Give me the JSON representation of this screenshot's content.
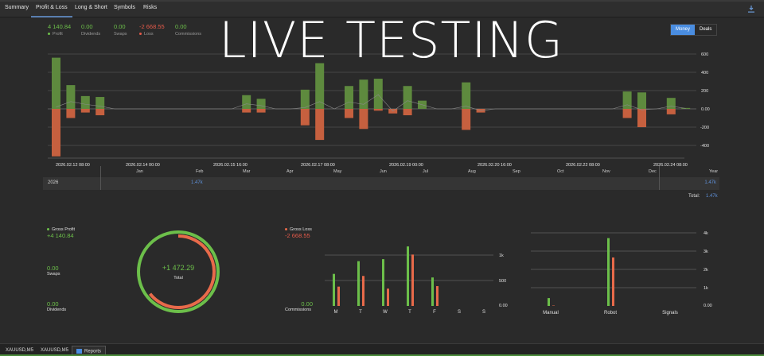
{
  "tabs": [
    {
      "label": "Summary"
    },
    {
      "label": "Profit & Loss",
      "active": true
    },
    {
      "label": "Long & Short"
    },
    {
      "label": "Symbols"
    },
    {
      "label": "Risks"
    }
  ],
  "header": {
    "overlay_title": "LIVE TESTING",
    "stats": [
      {
        "value": "4 140.84",
        "label": "Profit",
        "color": "#6cbf4a",
        "dot": "#6cbf4a"
      },
      {
        "value": "0.00",
        "label": "Dividends",
        "color": "#6cbf4a"
      },
      {
        "value": "0.00",
        "label": "Swaps",
        "color": "#6cbf4a"
      },
      {
        "value": "-2 668.55",
        "label": "Loss",
        "color": "#e55a4a",
        "dot": "#e55a4a"
      },
      {
        "value": "0.00",
        "label": "Commissions",
        "color": "#6cbf4a"
      }
    ],
    "toggle": {
      "money": "Money",
      "deals": "Deals",
      "selected": "Money"
    }
  },
  "months": [
    "Jan",
    "Feb",
    "Mar",
    "Apr",
    "May",
    "Jun",
    "Jul",
    "Aug",
    "Sep",
    "Oct",
    "Nov",
    "Dec"
  ],
  "year_table": {
    "year": "2026",
    "feb_value": "1.47k",
    "year_header": "Year",
    "year_value": "1.47k",
    "total_label": "Total:",
    "total_value": "1.47k"
  },
  "summary": {
    "gross_profit_label": "Gross Profit",
    "gross_profit_value": "+4 140.84",
    "swaps_value": "0.00",
    "swaps_label": "Swaps",
    "dividends_value": "0.00",
    "dividends_label": "Dividends",
    "total_value": "+1 472.29",
    "total_label": "Total",
    "gross_loss_label": "Gross Loss",
    "gross_loss_value": "-2 668.55",
    "commissions_value": "0.00",
    "commissions_label": "Commissions"
  },
  "bottom_tabs": [
    {
      "label": "XAUUSD,M5"
    },
    {
      "label": "XAUUSD,M5"
    },
    {
      "label": "Reports",
      "active": true
    }
  ],
  "colors": {
    "profit": "#5e8a3e",
    "loss": "#c6603f",
    "accent": "#4a8de0",
    "bright_green": "#6cbf4a",
    "bright_red": "#e86a4a"
  },
  "chart_data": [
    {
      "type": "bar",
      "title": "Profit & Loss by period",
      "xlabel": "",
      "ylabel": "",
      "ylim": [
        -520,
        620
      ],
      "yticks": [
        "600",
        "400",
        "200",
        "0.00",
        "-200",
        "-400"
      ],
      "xtick_labels": [
        "2026.02.12 08:00",
        "2026.02.14 00:00",
        "2026.02.15 16:00",
        "2026.02.17 08:00",
        "2026.02.19 00:00",
        "2026.02.20 16:00",
        "2026.02.22 08:00",
        "2026.02.24 08:00"
      ],
      "series": [
        {
          "name": "Profit",
          "values": [
            560,
            260,
            140,
            130,
            0,
            0,
            0,
            0,
            0,
            0,
            0,
            0,
            0,
            150,
            110,
            0,
            0,
            210,
            500,
            0,
            250,
            320,
            330,
            0,
            250,
            90,
            0,
            0,
            290,
            0,
            0,
            0,
            0,
            0,
            0,
            0,
            0,
            0,
            0,
            190,
            180,
            0,
            120,
            10
          ]
        },
        {
          "name": "Loss",
          "values": [
            -520,
            -100,
            -40,
            -70,
            0,
            0,
            0,
            0,
            0,
            0,
            0,
            0,
            0,
            -40,
            -40,
            0,
            0,
            -180,
            -340,
            0,
            -100,
            -220,
            -20,
            -50,
            -70,
            0,
            0,
            0,
            -230,
            -40,
            0,
            0,
            0,
            0,
            0,
            0,
            0,
            0,
            0,
            -100,
            -200,
            0,
            -60,
            0
          ]
        }
      ]
    },
    {
      "type": "bar",
      "title": "By weekday",
      "categories": [
        "M",
        "T",
        "W",
        "T",
        "F",
        "S",
        "S"
      ],
      "ylim": [
        0,
        1200
      ],
      "yticks": [
        "0.00",
        "500",
        "1k"
      ],
      "series": [
        {
          "name": "Gross Profit",
          "values": [
            630,
            880,
            920,
            1170,
            560,
            0,
            0
          ]
        },
        {
          "name": "Gross Loss",
          "values": [
            380,
            590,
            340,
            1010,
            390,
            0,
            0
          ]
        }
      ]
    },
    {
      "type": "bar",
      "title": "By source",
      "categories": [
        "Manual",
        "Robot",
        "Signals"
      ],
      "ylim": [
        0,
        4000
      ],
      "yticks": [
        "0.00",
        "1k",
        "2k",
        "3k",
        "4k"
      ],
      "series": [
        {
          "name": "Gross Profit",
          "values": [
            430,
            3710,
            0
          ]
        },
        {
          "name": "Gross Loss",
          "values": [
            20,
            2650,
            0
          ]
        }
      ]
    },
    {
      "type": "pie",
      "title": "Total",
      "center_label": "+1 472.29",
      "values": [
        4140.84,
        2668.55
      ],
      "labels": [
        "Gross Profit",
        "Gross Loss"
      ]
    }
  ]
}
